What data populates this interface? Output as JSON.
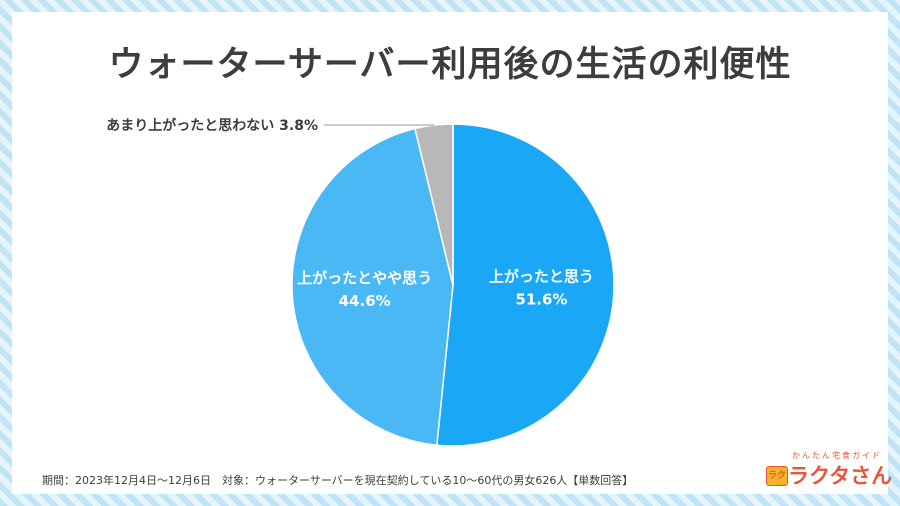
{
  "title": "ウォーターサーバー利用後の生活の利便性",
  "footnote": "期間：2023年12月4日～12月6日　対象：ウォーターサーバーを現在契約している10～60代の男女626人【単数回答】",
  "logo": {
    "sub": "かんたん宅食ガイド",
    "main": "ラクタさん",
    "badge": "ラク"
  },
  "colors": {
    "slice1": "#1aa7f5",
    "slice2": "#49b8f4",
    "slice3": "#b8b8b8",
    "label_light": "#ffffff",
    "label_dark": "#3d3d3d"
  },
  "chart_data": {
    "type": "pie",
    "title": "ウォーターサーバー利用後の生活の利便性",
    "slices": [
      {
        "label": "上がったと思う",
        "value": 51.6,
        "value_label": "51.6%"
      },
      {
        "label": "上がったとやや思う",
        "value": 44.6,
        "value_label": "44.6%"
      },
      {
        "label": "あまり上がったと思わない",
        "value": 3.8,
        "value_label": "3.8%"
      }
    ],
    "start": "12 o'clock",
    "direction": "clockwise"
  }
}
